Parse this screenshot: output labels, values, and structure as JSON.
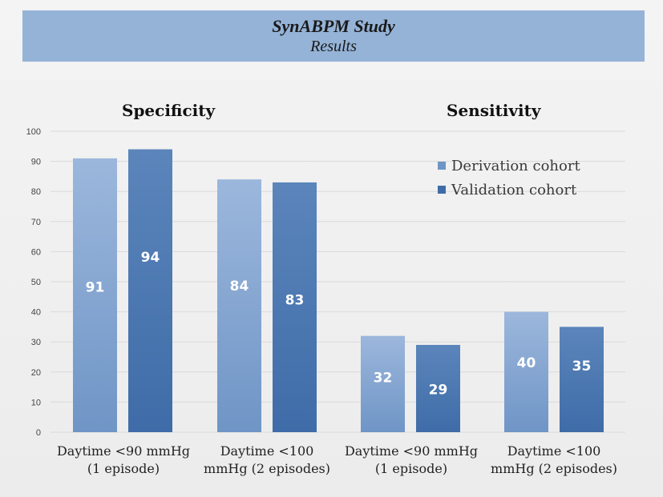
{
  "header": {
    "title": "SynABPM Study",
    "subtitle": "Results"
  },
  "panels": {
    "left_title": "Specificity",
    "right_title": "Sensitivity"
  },
  "chart_data": {
    "type": "bar",
    "title": "SynABPM Study — Results",
    "ylim": [
      0,
      100
    ],
    "yticks": [
      0,
      10,
      20,
      30,
      40,
      50,
      60,
      70,
      80,
      90,
      100
    ],
    "grid": true,
    "legend_position": "top-right",
    "categories": [
      "Daytime <90 mmHg (1 episode)",
      "Daytime <100 mmHg (2 episodes)",
      "Daytime <90 mmHg (1 episode)",
      "Daytime <100 mmHg (2 episodes)"
    ],
    "category_lines": [
      [
        "Daytime <90 mmHg",
        "(1 episode)"
      ],
      [
        "Daytime <100",
        "mmHg (2 episodes)"
      ],
      [
        "Daytime <90 mmHg",
        "(1 episode)"
      ],
      [
        "Daytime <100",
        "mmHg (2 episodes)"
      ]
    ],
    "groups": [
      "Specificity",
      "Specificity",
      "Sensitivity",
      "Sensitivity"
    ],
    "series": [
      {
        "name": "Derivation cohort",
        "values": [
          91,
          84,
          32,
          40
        ]
      },
      {
        "name": "Validation cohort",
        "values": [
          94,
          83,
          29,
          35
        ]
      }
    ],
    "colors": {
      "derivation_top": "#9cb7dc",
      "derivation_bottom": "#6f95c6",
      "validation_top": "#5b85bb",
      "validation_bottom": "#3f6ca8",
      "grid": "#d9d9d9",
      "tick_text": "#444444",
      "bar_label": "#ffffff"
    }
  }
}
